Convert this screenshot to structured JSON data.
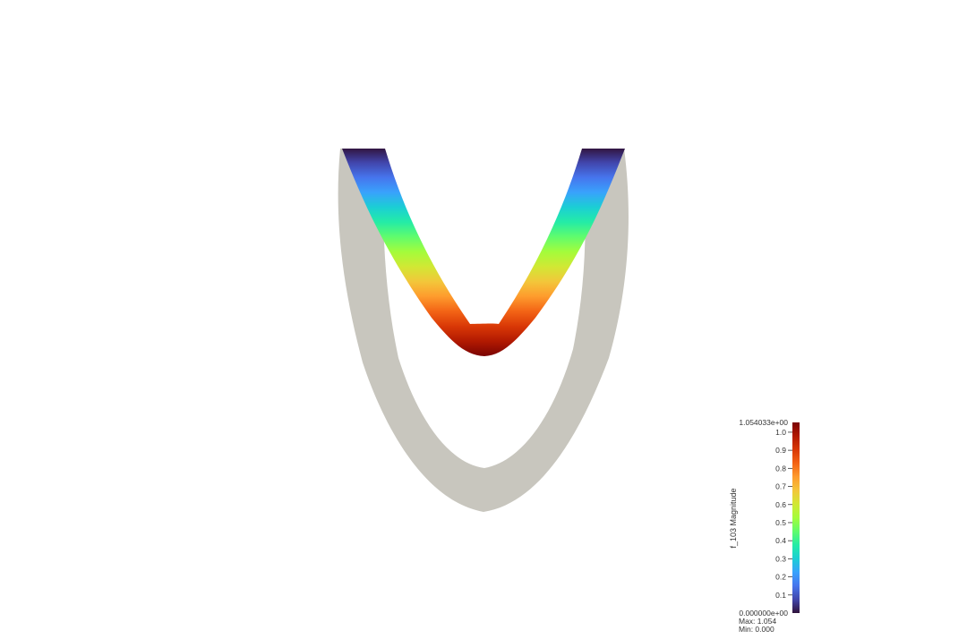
{
  "scene": {
    "background": "#ffffff",
    "undeformed_color": "#c8c6be"
  },
  "colorbar": {
    "title": "f_103 Magnitude",
    "range_max_label": "1.054033e+00",
    "range_min_label": "0.000000e+00",
    "range": [
      0,
      1.054033
    ],
    "ticks": [
      "0.1",
      "0.2",
      "0.3",
      "0.4",
      "0.5",
      "0.6",
      "0.7",
      "0.8",
      "0.9",
      "1.0"
    ],
    "max_text": "Max: 1.054",
    "min_text": "Min: 0.000",
    "colormap": [
      "#30123b",
      "#4145ab",
      "#4675ed",
      "#39a2fc",
      "#1bcfd4",
      "#24eca6",
      "#61fc6c",
      "#a4fc3b",
      "#d1e834",
      "#f3c63a",
      "#fe9b2d",
      "#f36315",
      "#d93806",
      "#b11901",
      "#7a0403"
    ]
  }
}
